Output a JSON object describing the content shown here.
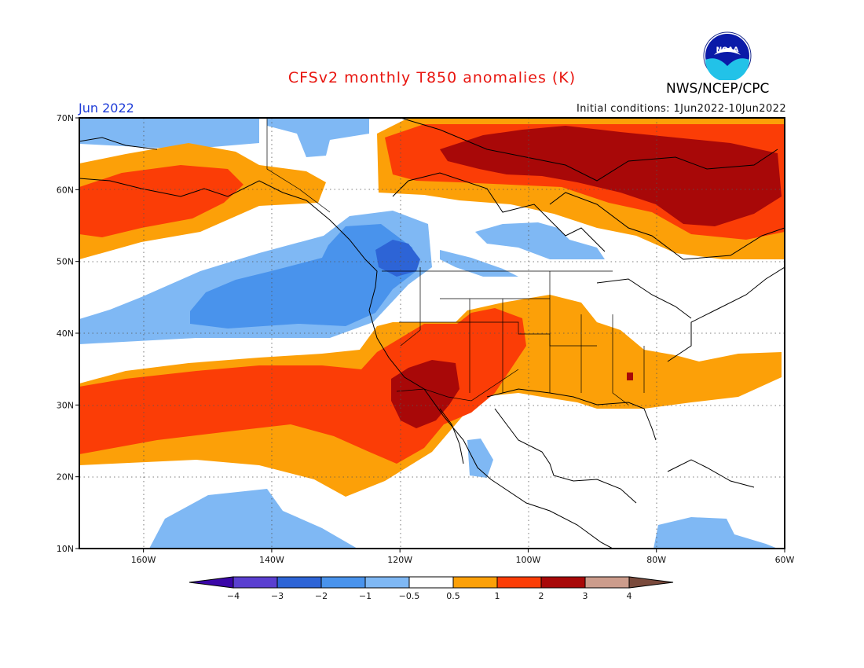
{
  "header": {
    "title": "CFSv2 monthly T850 anomalies (K)",
    "agency": "NWS/NCEP/CPC",
    "period": "Jun 2022",
    "initial_conditions": "Initial conditions: 1Jun2022-10Jun2022",
    "logo_text": "NOAA"
  },
  "axes": {
    "lat_labels": [
      "70N",
      "60N",
      "50N",
      "40N",
      "30N",
      "20N",
      "10N"
    ],
    "lon_labels": [
      "160W",
      "140W",
      "120W",
      "100W",
      "80W",
      "60W"
    ]
  },
  "colorbar": {
    "labels": [
      "-4",
      "-3",
      "-2",
      "-1",
      "-0.5",
      "0.5",
      "1",
      "2",
      "3",
      "4"
    ],
    "colors": [
      "#3a06a8",
      "#5a3fd0",
      "#2d64d6",
      "#4993ec",
      "#7fb8f4",
      "#ffffff",
      "#fca008",
      "#fb3d06",
      "#a80808",
      "#cc9c8c",
      "#7a4a3c"
    ]
  },
  "map_data": {
    "lon_range": [
      -170,
      -60
    ],
    "lat_range": [
      10,
      70
    ],
    "anomaly_regions": [
      {
        "name": "Western Canada / NE Pacific warm",
        "category": "1-2",
        "color": "#fb3d06"
      },
      {
        "name": "Hudson Bay / Eastern Canada warm",
        "category": "2-3",
        "color": "#a80808"
      },
      {
        "name": "Pacific Northwest cool",
        "category": "-2 to -1",
        "color": "#4993ec"
      },
      {
        "name": "Southwest US warm",
        "category": "2-3",
        "color": "#a80808"
      },
      {
        "name": "Southeast US warm",
        "category": "0.5-1",
        "color": "#fca008"
      },
      {
        "name": "Subtropical Pacific warm",
        "category": "1-2",
        "color": "#fb3d06"
      },
      {
        "name": "Tropical Pacific cool",
        "category": "-1 to -0.5",
        "color": "#7fb8f4"
      }
    ]
  }
}
